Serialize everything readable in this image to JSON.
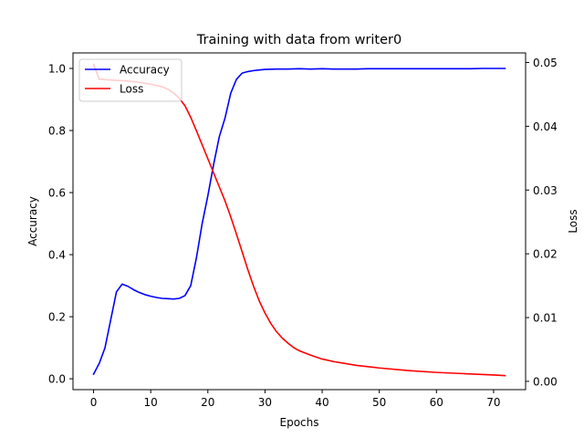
{
  "chart_data": {
    "type": "line",
    "title": "Training with data from writer0",
    "xlabel": "Epochs",
    "ylabel": "Accuracy",
    "y2label": "Loss",
    "xlim": [
      -3.6,
      75.6
    ],
    "ylim": [
      -0.035,
      1.05
    ],
    "y2lim": [
      -0.0013,
      0.0515
    ],
    "xticks": [
      0,
      10,
      20,
      30,
      40,
      50,
      60,
      70
    ],
    "yticks": [
      0.0,
      0.2,
      0.4,
      0.6,
      0.8,
      1.0
    ],
    "y2ticks": [
      0.0,
      0.01,
      0.02,
      0.03,
      0.04,
      0.05
    ],
    "xtick_labels": [
      "0",
      "10",
      "20",
      "30",
      "40",
      "50",
      "60",
      "70"
    ],
    "ytick_labels": [
      "0.0",
      "0.2",
      "0.4",
      "0.6",
      "0.8",
      "1.0"
    ],
    "y2tick_labels": [
      "0.00",
      "0.01",
      "0.02",
      "0.03",
      "0.04",
      "0.05"
    ],
    "grid": false,
    "legend_position": "upper-left",
    "series": [
      {
        "name": "Accuracy",
        "axis": "left",
        "color": "#0000ff",
        "x": [
          0,
          1,
          2,
          3,
          4,
          5,
          6,
          7,
          8,
          9,
          10,
          11,
          12,
          13,
          14,
          15,
          16,
          17,
          18,
          19,
          20,
          21,
          22,
          23,
          24,
          25,
          26,
          27,
          28,
          29,
          30,
          32,
          34,
          36,
          38,
          40,
          42,
          44,
          46,
          48,
          50,
          52,
          54,
          56,
          58,
          60,
          62,
          64,
          66,
          68,
          70,
          72
        ],
        "y": [
          0.015,
          0.05,
          0.1,
          0.19,
          0.28,
          0.305,
          0.298,
          0.287,
          0.278,
          0.271,
          0.266,
          0.262,
          0.259,
          0.258,
          0.257,
          0.259,
          0.268,
          0.3,
          0.39,
          0.5,
          0.59,
          0.69,
          0.78,
          0.84,
          0.92,
          0.965,
          0.985,
          0.99,
          0.993,
          0.995,
          0.997,
          0.998,
          0.998,
          0.999,
          0.998,
          0.999,
          0.998,
          0.998,
          0.998,
          0.999,
          0.999,
          0.999,
          0.999,
          0.999,
          0.999,
          0.999,
          0.999,
          0.999,
          0.999,
          1.0,
          1.0,
          1.0
        ]
      },
      {
        "name": "Loss",
        "axis": "right",
        "color": "#ff0000",
        "x": [
          0,
          1,
          2,
          4,
          6,
          8,
          10,
          12,
          13,
          14,
          15,
          16,
          17,
          18,
          19,
          20,
          21,
          22,
          23,
          24,
          25,
          26,
          27,
          28,
          29,
          30,
          31,
          32,
          33,
          34,
          35,
          36,
          38,
          40,
          42,
          44,
          46,
          48,
          50,
          55,
          60,
          65,
          70,
          72
        ],
        "y": [
          0.0497,
          0.0474,
          0.0473,
          0.0472,
          0.0471,
          0.0469,
          0.0466,
          0.0462,
          0.0458,
          0.0452,
          0.0444,
          0.0432,
          0.0414,
          0.0393,
          0.0371,
          0.0349,
          0.0327,
          0.0305,
          0.0283,
          0.0258,
          0.0231,
          0.0203,
          0.0175,
          0.0149,
          0.0126,
          0.0107,
          0.0091,
          0.0078,
          0.0068,
          0.006,
          0.0053,
          0.0048,
          0.0041,
          0.0035,
          0.0031,
          0.0028,
          0.0025,
          0.0023,
          0.0021,
          0.0017,
          0.0014,
          0.0012,
          0.001,
          0.0009
        ]
      }
    ]
  }
}
